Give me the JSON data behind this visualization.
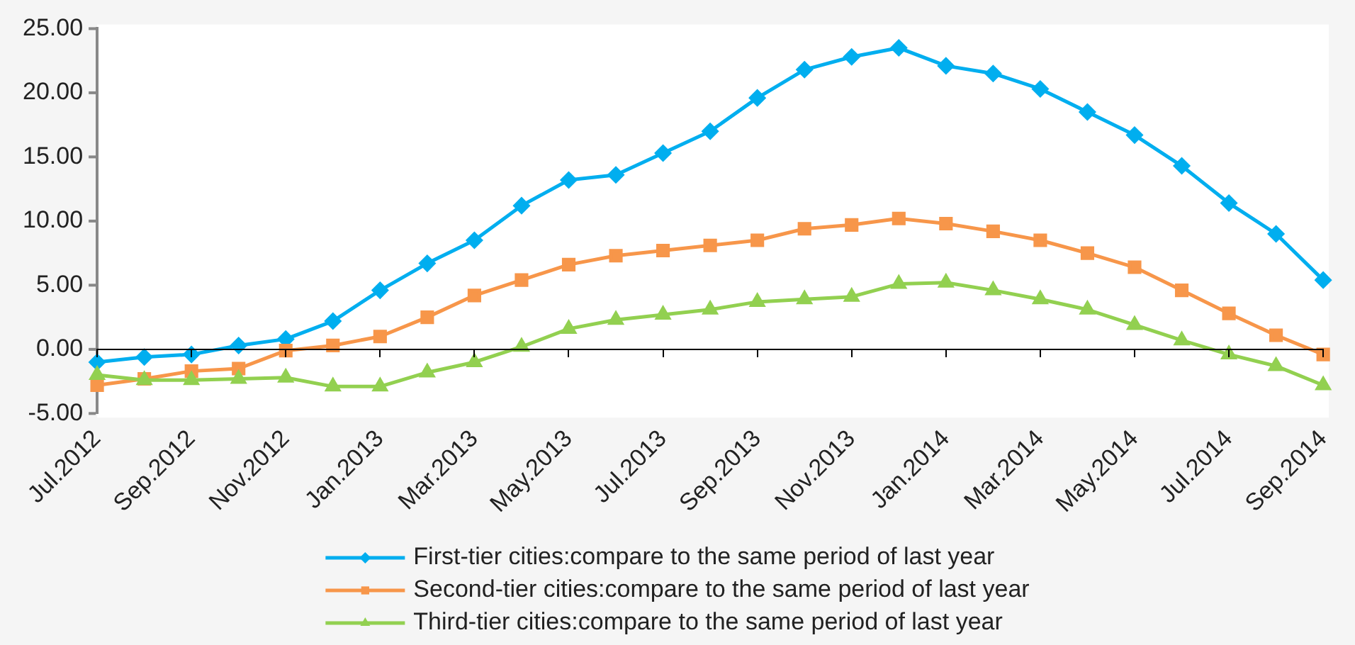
{
  "chart_data": {
    "type": "line",
    "categories": [
      "Jul.2012",
      null,
      "Sep.2012",
      null,
      "Nov.2012",
      null,
      "Jan.2013",
      null,
      "Mar.2013",
      null,
      "May.2013",
      null,
      "Jul.2013",
      null,
      "Sep.2013",
      null,
      "Nov.2013",
      null,
      "Jan.2014",
      null,
      "Mar.2014",
      null,
      "May.2014",
      null,
      "Jul.2014",
      null,
      "Sep.2014"
    ],
    "series": [
      {
        "name": "First-tier cities:compare to the same period of last year",
        "color": "#00aeef",
        "marker": "diamond",
        "values": [
          -1.0,
          -0.6,
          -0.4,
          0.3,
          0.8,
          2.2,
          4.6,
          6.7,
          8.5,
          11.2,
          13.2,
          13.6,
          15.3,
          17.0,
          19.6,
          21.8,
          22.8,
          23.5,
          22.1,
          21.5,
          20.3,
          18.5,
          16.7,
          14.3,
          11.4,
          9.0,
          5.4
        ]
      },
      {
        "name": "Second-tier cities:compare to the same period of last year",
        "color": "#f7964a",
        "marker": "square",
        "values": [
          -2.8,
          -2.3,
          -1.7,
          -1.5,
          -0.1,
          0.3,
          1.0,
          2.5,
          4.2,
          5.4,
          6.6,
          7.3,
          7.7,
          8.1,
          8.5,
          9.4,
          9.7,
          10.2,
          9.8,
          9.2,
          8.5,
          7.5,
          6.4,
          4.6,
          2.8,
          1.1,
          -0.4
        ]
      },
      {
        "name": "Third-tier cities:compare to the same period of last year",
        "color": "#92d050",
        "marker": "triangle",
        "values": [
          -2.0,
          -2.4,
          -2.4,
          -2.3,
          -2.2,
          -2.9,
          -2.9,
          -1.8,
          -1.0,
          0.2,
          1.6,
          2.3,
          2.7,
          3.1,
          3.7,
          3.9,
          4.1,
          5.1,
          5.2,
          4.6,
          3.9,
          3.1,
          1.9,
          0.7,
          -0.4,
          -1.3,
          -2.8
        ]
      }
    ],
    "ylim": [
      -5,
      25
    ],
    "yticks": [
      {
        "value": -5,
        "label": "-5.00"
      },
      {
        "value": 0,
        "label": "0.00"
      },
      {
        "value": 5,
        "label": "5.00"
      },
      {
        "value": 10,
        "label": "10.00"
      },
      {
        "value": 15,
        "label": "15.00"
      },
      {
        "value": 20,
        "label": "20.00"
      },
      {
        "value": 25,
        "label": "25.00"
      }
    ],
    "legend": "bottom",
    "line_style": "solid"
  }
}
